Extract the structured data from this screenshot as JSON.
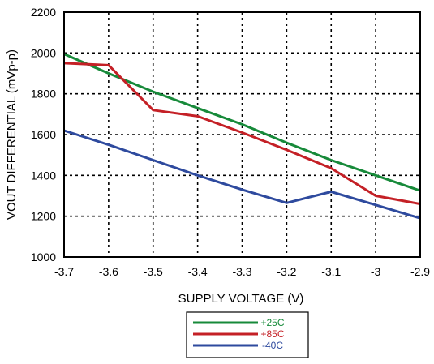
{
  "chart_data": {
    "type": "line",
    "title": "",
    "xlabel": "SUPPLY VOLTAGE (V)",
    "ylabel": "VOUT DIFFERENTIAL (mVp-p)",
    "xlim": [
      -3.7,
      -2.9
    ],
    "ylim": [
      1000,
      2200
    ],
    "x_ticks": [
      -3.7,
      -3.6,
      -3.5,
      -3.4,
      -3.3,
      -3.2,
      -3.1,
      -3.0,
      -2.9
    ],
    "x_tick_labels": [
      "-3.7",
      "-3.6",
      "-3.5",
      "-3.4",
      "-3.3",
      "-3.2",
      "-3.1",
      "-3",
      "-2.9"
    ],
    "y_ticks": [
      1000,
      1200,
      1400,
      1600,
      1800,
      2000,
      2200
    ],
    "y_tick_labels": [
      "1000",
      "1200",
      "1400",
      "1600",
      "1800",
      "2000",
      "2200"
    ],
    "grid": true,
    "legend_position": "bottom-center",
    "series": [
      {
        "name": "+25C",
        "color": "#178a3a",
        "x": [
          -3.7,
          -3.6,
          -3.5,
          -3.4,
          -3.3,
          -3.2,
          -3.1,
          -3.0,
          -2.9
        ],
        "y": [
          1995,
          1900,
          1810,
          1730,
          1650,
          1560,
          1475,
          1400,
          1325
        ]
      },
      {
        "name": "+85C",
        "color": "#c42026",
        "x": [
          -3.7,
          -3.6,
          -3.5,
          -3.4,
          -3.3,
          -3.2,
          -3.1,
          -3.0,
          -2.9
        ],
        "y": [
          1950,
          1940,
          1720,
          1690,
          1610,
          1525,
          1435,
          1300,
          1260
        ]
      },
      {
        "name": "-40C",
        "color": "#2e4a9e",
        "x": [
          -3.7,
          -3.6,
          -3.5,
          -3.4,
          -3.3,
          -3.2,
          -3.1,
          -3.0,
          -2.9
        ],
        "y": [
          1620,
          1550,
          1475,
          1400,
          1330,
          1265,
          1320,
          1255,
          1190
        ]
      }
    ]
  }
}
